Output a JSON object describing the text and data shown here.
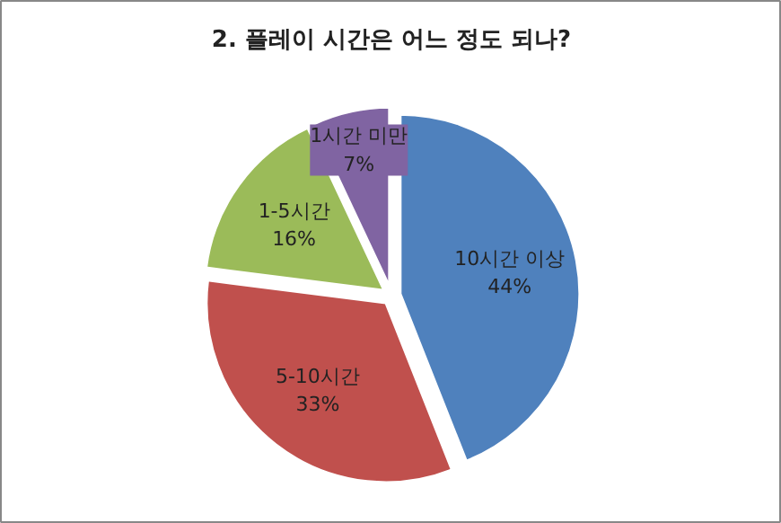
{
  "chart_data": {
    "type": "pie",
    "title": "2. 플레이 시간은 어느 정도 되나?",
    "categories": [
      "10시간 이상",
      "5-10시간",
      "1-5시간",
      "1시간 미만"
    ],
    "values": [
      44,
      33,
      16,
      7
    ],
    "colors": [
      "#4f81bd",
      "#c0504d",
      "#9bbb59",
      "#8064a2"
    ],
    "value_labels": [
      "44%",
      "33%",
      "16%",
      "7%"
    ]
  }
}
